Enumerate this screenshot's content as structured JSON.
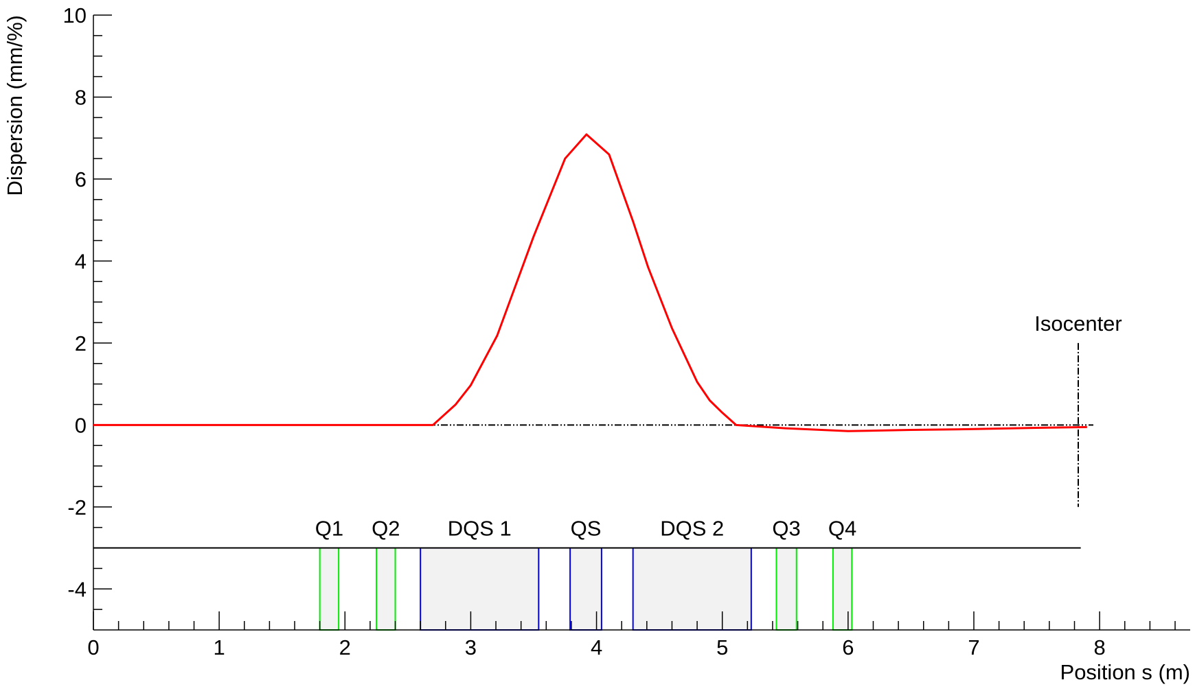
{
  "chart_data": {
    "type": "line",
    "xlabel": "Position s (m)",
    "ylabel": "Dispersion (mm/%)",
    "xlim": [
      0,
      8.72
    ],
    "ylim": [
      -5,
      10
    ],
    "xticks": [
      0,
      1,
      2,
      3,
      4,
      5,
      6,
      7,
      8
    ],
    "yticks": [
      -4,
      -2,
      0,
      2,
      4,
      6,
      8,
      10
    ],
    "xminorticks": [
      0.2,
      0.4,
      0.6,
      0.8,
      1.2,
      1.4,
      1.6,
      1.8,
      2.2,
      2.4,
      2.6,
      2.8,
      3.2,
      3.4,
      3.6,
      3.8,
      4.2,
      4.4,
      4.6,
      4.8,
      5.2,
      5.4,
      5.6,
      5.8,
      6.2,
      6.4,
      6.6,
      6.8,
      7.2,
      7.4,
      7.6,
      7.8,
      8.2,
      8.4,
      8.6
    ],
    "yminorticks": [
      -4.5,
      -3.5,
      -3,
      -2.5,
      -1.5,
      -1,
      -0.5,
      0.5,
      1,
      1.5,
      2.5,
      3,
      3.5,
      4.5,
      5,
      5.5,
      6.5,
      7,
      7.5,
      8.5,
      9,
      9.5
    ],
    "x": [
      0,
      1,
      2,
      2.7,
      2.88,
      3.0,
      3.21,
      3.5,
      3.75,
      3.92,
      4.1,
      4.29,
      4.41,
      4.6,
      4.8,
      4.9,
      5.0,
      5.11,
      5.5,
      6.0,
      6.5,
      7.0,
      7.5,
      7.9
    ],
    "series": [
      {
        "color": "#ff0000",
        "values": [
          0,
          0,
          0,
          0,
          0.5,
          0.97,
          2.18,
          4.6,
          6.5,
          7.09,
          6.6,
          4.97,
          3.85,
          2.36,
          1.05,
          0.6,
          0.3,
          0,
          -0.08,
          -0.15,
          -0.12,
          -0.1,
          -0.07,
          -0.05
        ]
      }
    ],
    "reference_line": {
      "y": 0,
      "x_end": 7.95
    },
    "beamline": {
      "y": -3,
      "x_end": 7.85
    },
    "isocenter": {
      "label": "Isocenter",
      "x": 7.83,
      "y_range": [
        -2,
        2
      ]
    },
    "elements": [
      {
        "label": "Q1",
        "start": 1.8,
        "end": 1.95,
        "color": "#00ee00"
      },
      {
        "label": "Q2",
        "start": 2.25,
        "end": 2.4,
        "color": "#00ee00"
      },
      {
        "label": "DQS 1",
        "start": 2.6,
        "end": 3.54,
        "color": "#0000ee"
      },
      {
        "label": "QS",
        "start": 3.79,
        "end": 4.04,
        "color": "#0000ee"
      },
      {
        "label": "DQS 2",
        "start": 4.29,
        "end": 5.23,
        "color": "#0000ee"
      },
      {
        "label": "Q3",
        "start": 5.43,
        "end": 5.59,
        "color": "#00ee00"
      },
      {
        "label": "Q4",
        "start": 5.88,
        "end": 6.03,
        "color": "#00ee00"
      }
    ]
  }
}
